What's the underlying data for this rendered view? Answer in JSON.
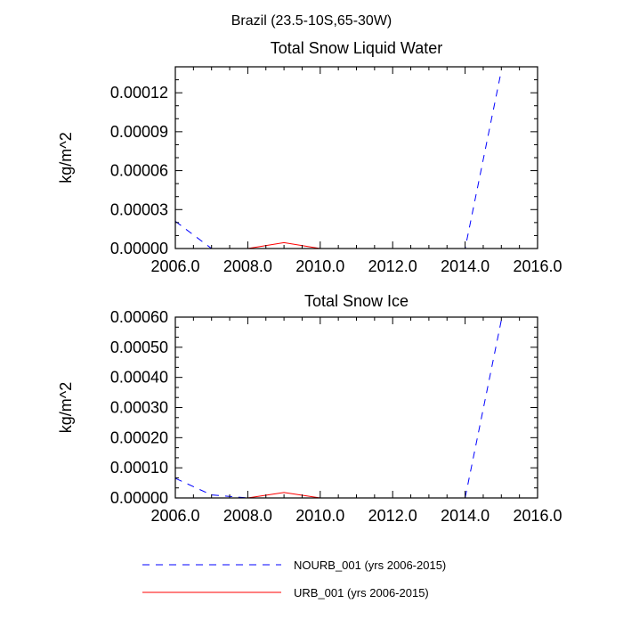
{
  "figure_title": "Brazil (23.5-10S,65-30W)",
  "chart_data": [
    {
      "type": "line",
      "title": "Total Snow Liquid Water",
      "xlabel": "",
      "ylabel": "kg/m^2",
      "xlim": [
        2006,
        2016
      ],
      "ylim": [
        0,
        0.00014
      ],
      "x_ticks": [
        2006,
        2008,
        2010,
        2012,
        2014,
        2016
      ],
      "x_tick_labels": [
        "2006.0",
        "2008.0",
        "2010.0",
        "2012.0",
        "2014.0",
        "2016.0"
      ],
      "y_ticks": [
        0,
        3e-05,
        6e-05,
        9e-05,
        0.00012
      ],
      "y_tick_labels": [
        "0.00000",
        "0.00003",
        "0.00006",
        "0.00009",
        "0.00012"
      ],
      "series": [
        {
          "name": "NOURB_001 (yrs 2006-2015)",
          "color": "#0000ff",
          "dash": "dashed",
          "x": [
            2006,
            2007,
            2008,
            2009,
            2010,
            2011,
            2012,
            2013,
            2014,
            2015
          ],
          "y": [
            2.1e-05,
            0,
            0,
            0,
            0,
            0,
            0,
            0,
            0,
            0.000137
          ]
        },
        {
          "name": "URB_001 (yrs 2006-2015)",
          "color": "#ff0000",
          "dash": "solid",
          "x": [
            2008,
            2009,
            2010
          ],
          "y": [
            0,
            4.5e-06,
            0
          ]
        }
      ]
    },
    {
      "type": "line",
      "title": "Total Snow Ice",
      "xlabel": "",
      "ylabel": "kg/m^2",
      "xlim": [
        2006,
        2016
      ],
      "ylim": [
        0,
        0.0006
      ],
      "x_ticks": [
        2006,
        2008,
        2010,
        2012,
        2014,
        2016
      ],
      "x_tick_labels": [
        "2006.0",
        "2008.0",
        "2010.0",
        "2012.0",
        "2014.0",
        "2016.0"
      ],
      "y_ticks": [
        0,
        0.0001,
        0.0002,
        0.0003,
        0.0004,
        0.0005,
        0.0006
      ],
      "y_tick_labels": [
        "0.00000",
        "0.00010",
        "0.00020",
        "0.00030",
        "0.00040",
        "0.00050",
        "0.00060"
      ],
      "series": [
        {
          "name": "NOURB_001 (yrs 2006-2015)",
          "color": "#0000ff",
          "dash": "dashed",
          "x": [
            2006,
            2007,
            2008,
            2009,
            2010,
            2011,
            2012,
            2013,
            2014,
            2015
          ],
          "y": [
            6.5e-05,
            1e-05,
            0,
            0,
            0,
            0,
            0,
            0,
            0,
            0.00059
          ]
        },
        {
          "name": "URB_001 (yrs 2006-2015)",
          "color": "#ff0000",
          "dash": "solid",
          "x": [
            2008,
            2009,
            2010
          ],
          "y": [
            0,
            1.8e-05,
            0
          ]
        }
      ]
    }
  ],
  "legend": {
    "entries": [
      {
        "label": "NOURB_001 (yrs 2006-2015)",
        "color": "#0000ff",
        "dash": "dashed"
      },
      {
        "label": "URB_001 (yrs 2006-2015)",
        "color": "#ff0000",
        "dash": "solid"
      }
    ]
  }
}
